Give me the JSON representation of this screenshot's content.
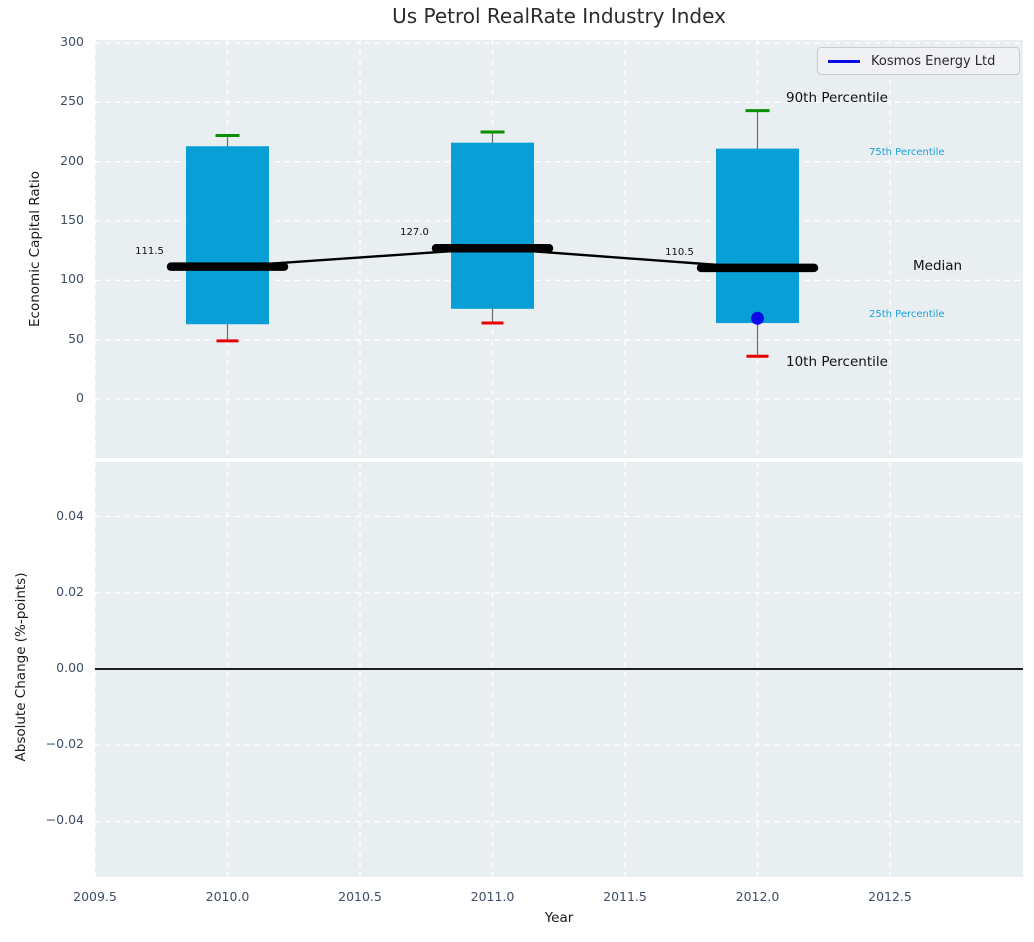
{
  "title": "Us Petrol RealRate Industry Index",
  "legend": {
    "label": "Kosmos Energy Ltd"
  },
  "right_labels": {
    "p90": "90th Percentile",
    "p75": "75th Percentile",
    "median": "Median",
    "p25": "25th Percentile",
    "p10": "10th Percentile"
  },
  "colors": {
    "box_fill": "#089ed6",
    "cap_high": "#089000",
    "cap_low": "#e60000",
    "whisker": "#6a6a6a",
    "median_line": "#000000",
    "company_marker": "#0a0ae6",
    "legend_line": "#0a0ae6",
    "plot_bg": "#e9eef0",
    "grid": "#ffffff",
    "tick_text": "#3e4e66",
    "cyan_label": "#1ba3dc",
    "zero_line": "#000000"
  },
  "chart_data": [
    {
      "type": "boxplot",
      "title": "Us Petrol RealRate Industry Index",
      "ylabel": "Economic Capital Ratio",
      "x": [
        2010,
        2011,
        2012
      ],
      "series": [
        {
          "name": "90th Percentile",
          "values": [
            222,
            225,
            243
          ]
        },
        {
          "name": "75th Percentile",
          "values": [
            213,
            216,
            211
          ]
        },
        {
          "name": "Median",
          "values": [
            111.5,
            127.0,
            110.5
          ]
        },
        {
          "name": "25th Percentile",
          "values": [
            63,
            76,
            64
          ]
        },
        {
          "name": "10th Percentile",
          "values": [
            49,
            64,
            36
          ]
        }
      ],
      "company_series": {
        "name": "Kosmos Energy Ltd",
        "x": [
          2012
        ],
        "values": [
          68
        ]
      },
      "median_labels": [
        "111.5",
        "127.0",
        "110.5"
      ],
      "xlim": [
        2009.5,
        2013.0
      ],
      "ylim": [
        -50,
        302
      ],
      "yticks": [
        300,
        250,
        200,
        150,
        100,
        50,
        0
      ],
      "ytick_labels": [
        "300",
        "250",
        "200",
        "150",
        "100",
        "50",
        "0"
      ],
      "grid": true,
      "legend_position": "upper right"
    },
    {
      "type": "line",
      "ylabel": "Absolute Change (%-points)",
      "xlabel": "Year",
      "x": [],
      "series": [],
      "xticks": [
        2009.5,
        2010.0,
        2010.5,
        2011.0,
        2011.5,
        2012.0,
        2012.5
      ],
      "xtick_labels": [
        "2009.5",
        "2010.0",
        "2010.5",
        "2011.0",
        "2011.5",
        "2012.0",
        "2012.5"
      ],
      "ylim": [
        -0.055,
        0.0545
      ],
      "yticks": [
        0.04,
        0.02,
        0.0,
        -0.02,
        -0.04
      ],
      "ytick_labels": [
        "0.04",
        "0.02",
        "0.00",
        "−0.02",
        "−0.04"
      ],
      "zero_line": true,
      "grid": true
    }
  ]
}
